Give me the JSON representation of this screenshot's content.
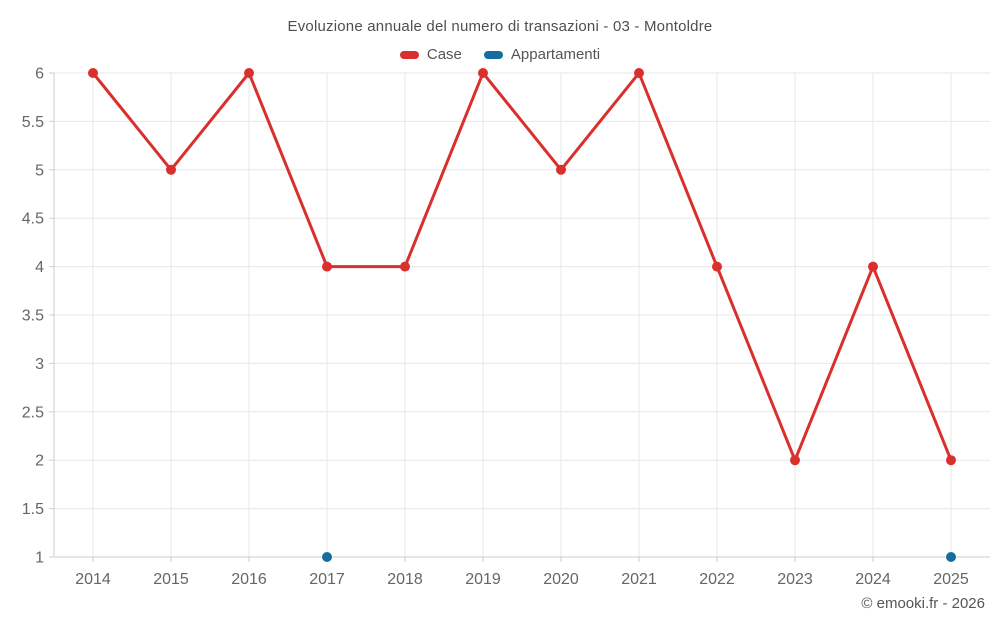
{
  "header": {
    "title": "Evoluzione annuale del numero di transazioni - 03 - Montoldre"
  },
  "legend": {
    "items": [
      {
        "label": "Case",
        "color": "#d9302e"
      },
      {
        "label": "Appartamenti",
        "color": "#176e9e"
      }
    ]
  },
  "footer": {
    "credit": "© emooki.fr - 2026"
  },
  "chart_data": {
    "type": "line",
    "title": "Evoluzione annuale del numero di transazioni - 03 - Montoldre",
    "categories": [
      "2014",
      "2015",
      "2016",
      "2017",
      "2018",
      "2019",
      "2020",
      "2021",
      "2022",
      "2023",
      "2024",
      "2025"
    ],
    "series": [
      {
        "name": "Case",
        "color": "#d9302e",
        "values": [
          6,
          5,
          6,
          4,
          4,
          6,
          5,
          6,
          4,
          2,
          4,
          2
        ]
      },
      {
        "name": "Appartamenti",
        "color": "#176e9e",
        "values": [
          null,
          null,
          null,
          1,
          null,
          null,
          null,
          null,
          null,
          null,
          null,
          1
        ]
      }
    ],
    "xlabel": "",
    "ylabel": "",
    "ylim": [
      1,
      6
    ],
    "ytick_step": 0.5,
    "grid": true,
    "legend_position": "top",
    "style": {
      "grid_color": "#e7e7e7",
      "axis_color": "#cccccc",
      "tick_label_color": "#666666",
      "marker_radius": 5,
      "line_width": 3
    }
  }
}
